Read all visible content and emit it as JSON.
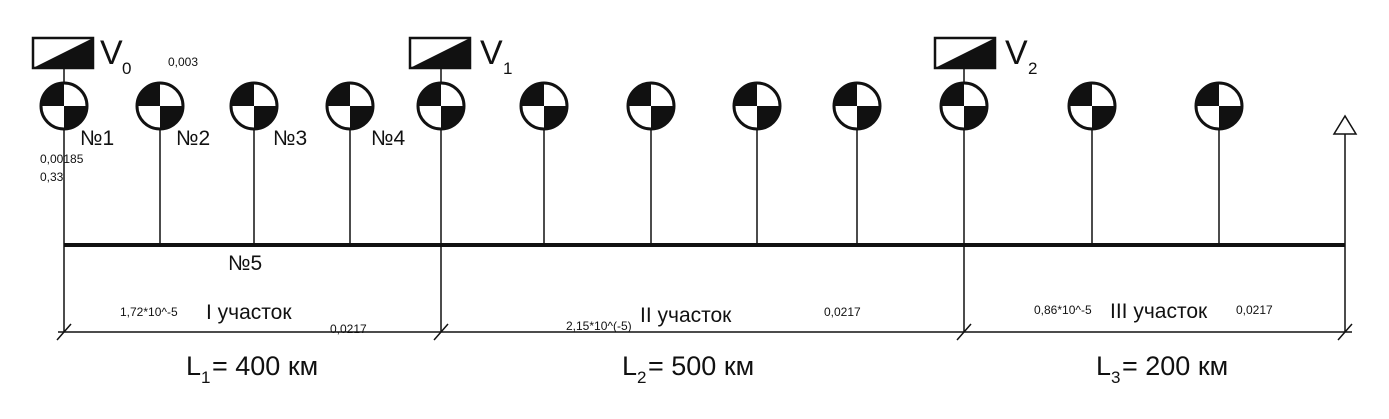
{
  "valves": [
    {
      "name": "V",
      "sub": "0"
    },
    {
      "name": "V",
      "sub": "1"
    },
    {
      "name": "V",
      "sub": "2"
    }
  ],
  "station_numbers": [
    "№1",
    "№2",
    "№3",
    "№4"
  ],
  "main_line_label": "№5",
  "annotations": {
    "a1": "0,003",
    "a2": "0,00185",
    "a3": "0,33"
  },
  "sections": [
    {
      "name": "I участок",
      "coef": "1,72*10^-5",
      "value": "0,0217",
      "length_prefix": "L",
      "length_sub": "1",
      "length_text": "= 400 км"
    },
    {
      "name": "II участок",
      "coef": "2,15*10^(-5)",
      "value": "0,0217",
      "length_prefix": "L",
      "length_sub": "2",
      "length_text": "= 500 км"
    },
    {
      "name": "III участок",
      "coef": "0,86*10^-5",
      "value": "0,0217",
      "length_prefix": "L",
      "length_sub": "3",
      "length_text": "= 200 км"
    }
  ],
  "end_marker_icon": "triangle-outline-icon",
  "station_icon": "quartered-circle-icon",
  "valve_icon": "diagonal-split-rectangle-icon",
  "colors": {
    "line": "#111111",
    "fill": "#111111",
    "background": "#ffffff"
  }
}
